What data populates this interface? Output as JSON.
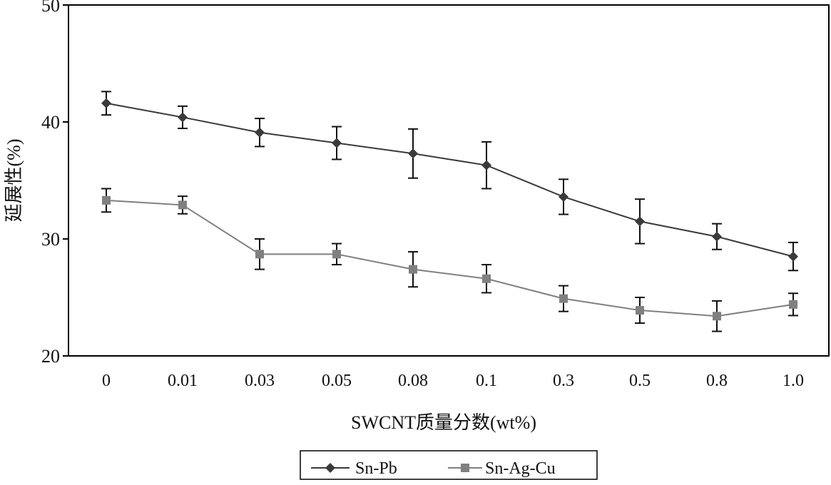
{
  "chart_data": {
    "type": "line",
    "title": "",
    "xlabel": "SWCNT质量分数(wt%)",
    "ylabel": "延展性(%)",
    "categories": [
      "0",
      "0.01",
      "0.03",
      "0.05",
      "0.08",
      "0.1",
      "0.3",
      "0.5",
      "0.8",
      "1.0"
    ],
    "ylim": [
      20,
      50
    ],
    "yticks": [
      "20",
      "30",
      "40",
      "50"
    ],
    "ytick_values": [
      20,
      30,
      40,
      50
    ],
    "grid": false,
    "legend_position": "bottom-center",
    "series": [
      {
        "name": "Sn-Pb",
        "marker": "diamond",
        "color": "#3a3a3a",
        "values": [
          41.6,
          40.4,
          39.1,
          38.2,
          37.3,
          36.3,
          33.6,
          31.5,
          30.2,
          28.5
        ],
        "errors": [
          1.0,
          0.95,
          1.2,
          1.4,
          2.1,
          2.0,
          1.5,
          1.9,
          1.1,
          1.2
        ]
      },
      {
        "name": "Sn-Ag-Cu",
        "marker": "square",
        "color": "#808080",
        "values": [
          33.3,
          32.9,
          28.7,
          28.7,
          27.4,
          26.6,
          24.9,
          23.9,
          23.4,
          24.4
        ],
        "errors": [
          1.0,
          0.75,
          1.3,
          0.9,
          1.5,
          1.2,
          1.1,
          1.1,
          1.3,
          0.95
        ]
      }
    ]
  }
}
